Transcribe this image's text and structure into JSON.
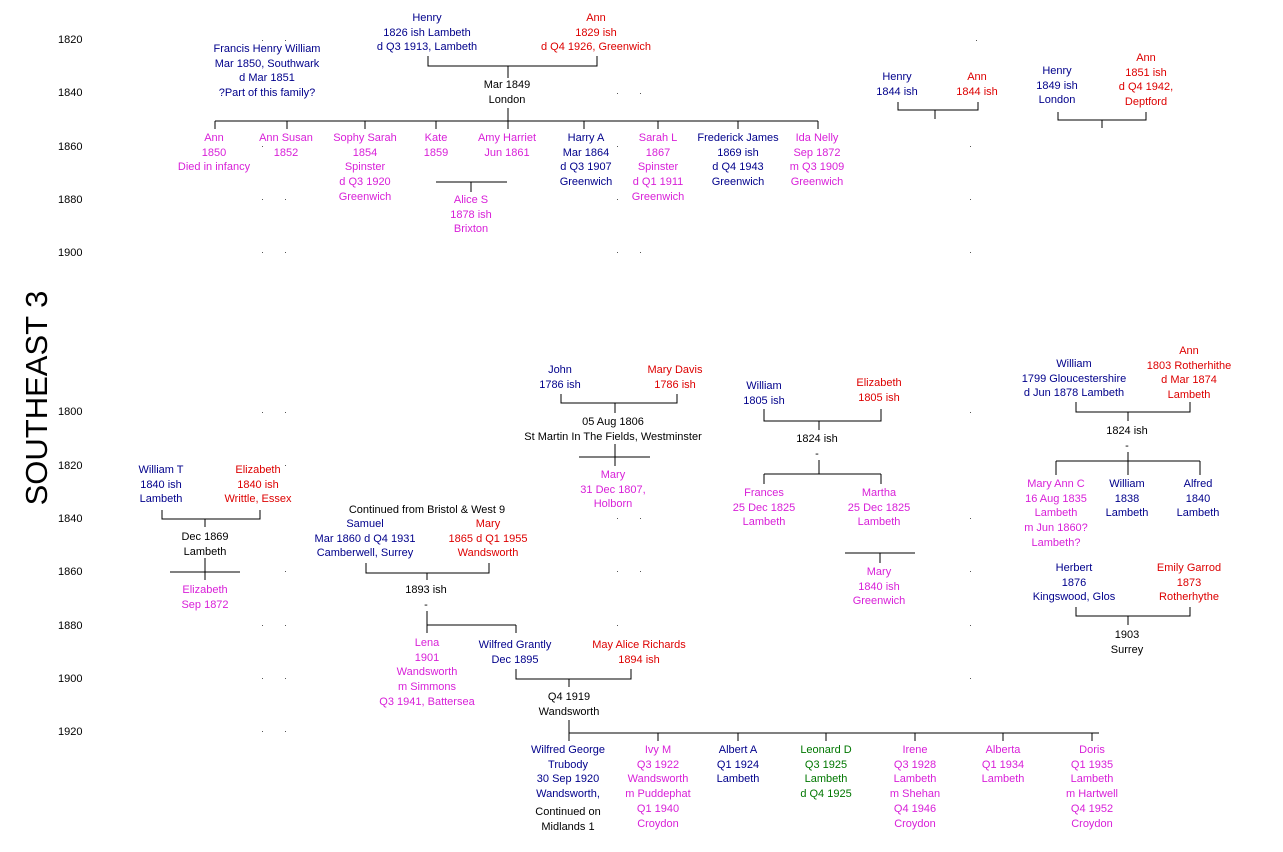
{
  "title": "SOUTHEAST 3",
  "years_top": [
    "1820",
    "1840",
    "1860",
    "1880",
    "1900"
  ],
  "years_bottom": [
    "1800",
    "1820",
    "1840",
    "1860",
    "1880",
    "1900",
    "1920"
  ],
  "colors": {
    "male": "#00008b",
    "female": "#dd0000",
    "child": "#d81fd8",
    "green": "#007700"
  },
  "people": {
    "henry_1826": [
      "Henry",
      "1826 ish Lambeth",
      "d Q3 1913, Lambeth"
    ],
    "ann_1829": [
      "Ann",
      "1829 ish",
      "d Q4 1926, Greenwich"
    ],
    "francis": [
      "Francis Henry William",
      "Mar 1850, Southwark",
      "d Mar 1851",
      "?Part of this family?"
    ],
    "marriage_1849": [
      "Mar 1849",
      "London"
    ],
    "ann_1850": [
      "Ann",
      "1850",
      "Died in infancy"
    ],
    "ann_susan": [
      "Ann Susan",
      "1852"
    ],
    "sophy": [
      "Sophy Sarah",
      "1854",
      "Spinster",
      "d Q3 1920",
      "Greenwich"
    ],
    "kate": [
      "Kate",
      "1859"
    ],
    "amy": [
      "Amy Harriet",
      "Jun 1861"
    ],
    "harry": [
      "Harry A",
      "Mar 1864",
      "d Q3 1907",
      "Greenwich"
    ],
    "sarah_l": [
      "Sarah L",
      "1867",
      "Spinster",
      "d Q1 1911",
      "Greenwich"
    ],
    "frederick": [
      "Frederick James",
      "1869 ish",
      "d Q4 1943",
      "Greenwich"
    ],
    "ida": [
      "Ida Nelly",
      "Sep 1872",
      "m Q3 1909",
      "Greenwich"
    ],
    "alice_s": [
      "Alice S",
      "1878 ish",
      "Brixton"
    ],
    "henry_1844": [
      "Henry",
      "1844 ish"
    ],
    "ann_1844": [
      "Ann",
      "1844 ish"
    ],
    "henry_1849": [
      "Henry",
      "1849 ish",
      "London"
    ],
    "ann_1851": [
      "Ann",
      "1851 ish",
      "d Q4 1942,",
      "Deptford"
    ],
    "john": [
      "John",
      "1786 ish"
    ],
    "mary_davis": [
      "Mary Davis",
      "1786 ish"
    ],
    "marriage_1806": [
      "05 Aug 1806",
      "St Martin In The Fields, Westminster"
    ],
    "mary_1807": [
      "Mary",
      "31 Dec 1807,",
      "Holborn"
    ],
    "william_1805": [
      "William",
      "1805 ish"
    ],
    "elizabeth_1805": [
      "Elizabeth",
      "1805 ish"
    ],
    "marriage_1824": [
      "1824 ish",
      "-"
    ],
    "frances": [
      "Frances",
      "25 Dec 1825",
      "Lambeth"
    ],
    "martha": [
      "Martha",
      "25 Dec 1825",
      "Lambeth"
    ],
    "mary_1840": [
      "Mary",
      "1840 ish",
      "Greenwich"
    ],
    "william_1799": [
      "William",
      "1799 Gloucestershire",
      "d Jun 1878 Lambeth"
    ],
    "ann_1803": [
      "Ann",
      "1803 Rotherhithe",
      "d Mar 1874",
      "Lambeth"
    ],
    "marriage_1824b": [
      "1824 ish",
      "-"
    ],
    "mary_ann_c": [
      "Mary Ann C",
      "16 Aug 1835",
      "Lambeth",
      "m Jun 1860?",
      "Lambeth?"
    ],
    "william_1838": [
      "William",
      "1838",
      "Lambeth"
    ],
    "alfred": [
      "Alfred",
      "1840",
      "Lambeth"
    ],
    "herbert": [
      "Herbert",
      "1876",
      "Kingswood, Glos"
    ],
    "emily": [
      "Emily Garrod",
      "1873",
      "Rotherhythe"
    ],
    "marriage_1903": [
      "1903",
      "Surrey"
    ],
    "william_t": [
      "William T",
      "1840 ish",
      "Lambeth"
    ],
    "elizabeth_1840": [
      "Elizabeth",
      "1840 ish",
      "Writtle, Essex"
    ],
    "marriage_1869": [
      "Dec 1869",
      "Lambeth"
    ],
    "elizabeth_1872": [
      "Elizabeth",
      "Sep 1872"
    ],
    "continued_bristol": [
      "Continued from Bristol & West 9"
    ],
    "samuel": [
      "Samuel",
      "Mar 1860 d Q4 1931",
      "Camberwell, Surrey"
    ],
    "mary_1865": [
      "Mary",
      "1865 d Q1 1955",
      "Wandsworth"
    ],
    "marriage_1893": [
      "1893 ish",
      "-"
    ],
    "lena": [
      "Lena",
      "1901",
      "Wandsworth",
      "m Simmons",
      "Q3 1941, Battersea"
    ],
    "wilfred_grantly": [
      "Wilfred Grantly",
      "Dec 1895"
    ],
    "may_alice": [
      "May Alice Richards",
      "1894 ish"
    ],
    "marriage_1919": [
      "Q4 1919",
      "Wandsworth"
    ],
    "wilfred_george": [
      "Wilfred George",
      "Trubody",
      "30 Sep 1920",
      "Wandsworth,"
    ],
    "wg_continued": [
      "Continued on",
      "Midlands 1"
    ],
    "ivy": [
      "Ivy M",
      "Q3 1922",
      "Wandsworth",
      "m Puddephat",
      "Q1 1940",
      "Croydon"
    ],
    "albert": [
      "Albert A",
      "Q1 1924",
      "Lambeth"
    ],
    "leonard": [
      "Leonard D",
      "Q3 1925",
      "Lambeth",
      "d Q4 1925"
    ],
    "irene": [
      "Irene",
      "Q3 1928",
      "Lambeth",
      "m Shehan",
      "Q4 1946",
      "Croydon"
    ],
    "alberta": [
      "Alberta",
      "Q1 1934",
      "Lambeth"
    ],
    "doris": [
      "Doris",
      "Q1 1935",
      "Lambeth",
      "m Hartwell",
      "Q4 1952",
      "Croydon"
    ]
  }
}
